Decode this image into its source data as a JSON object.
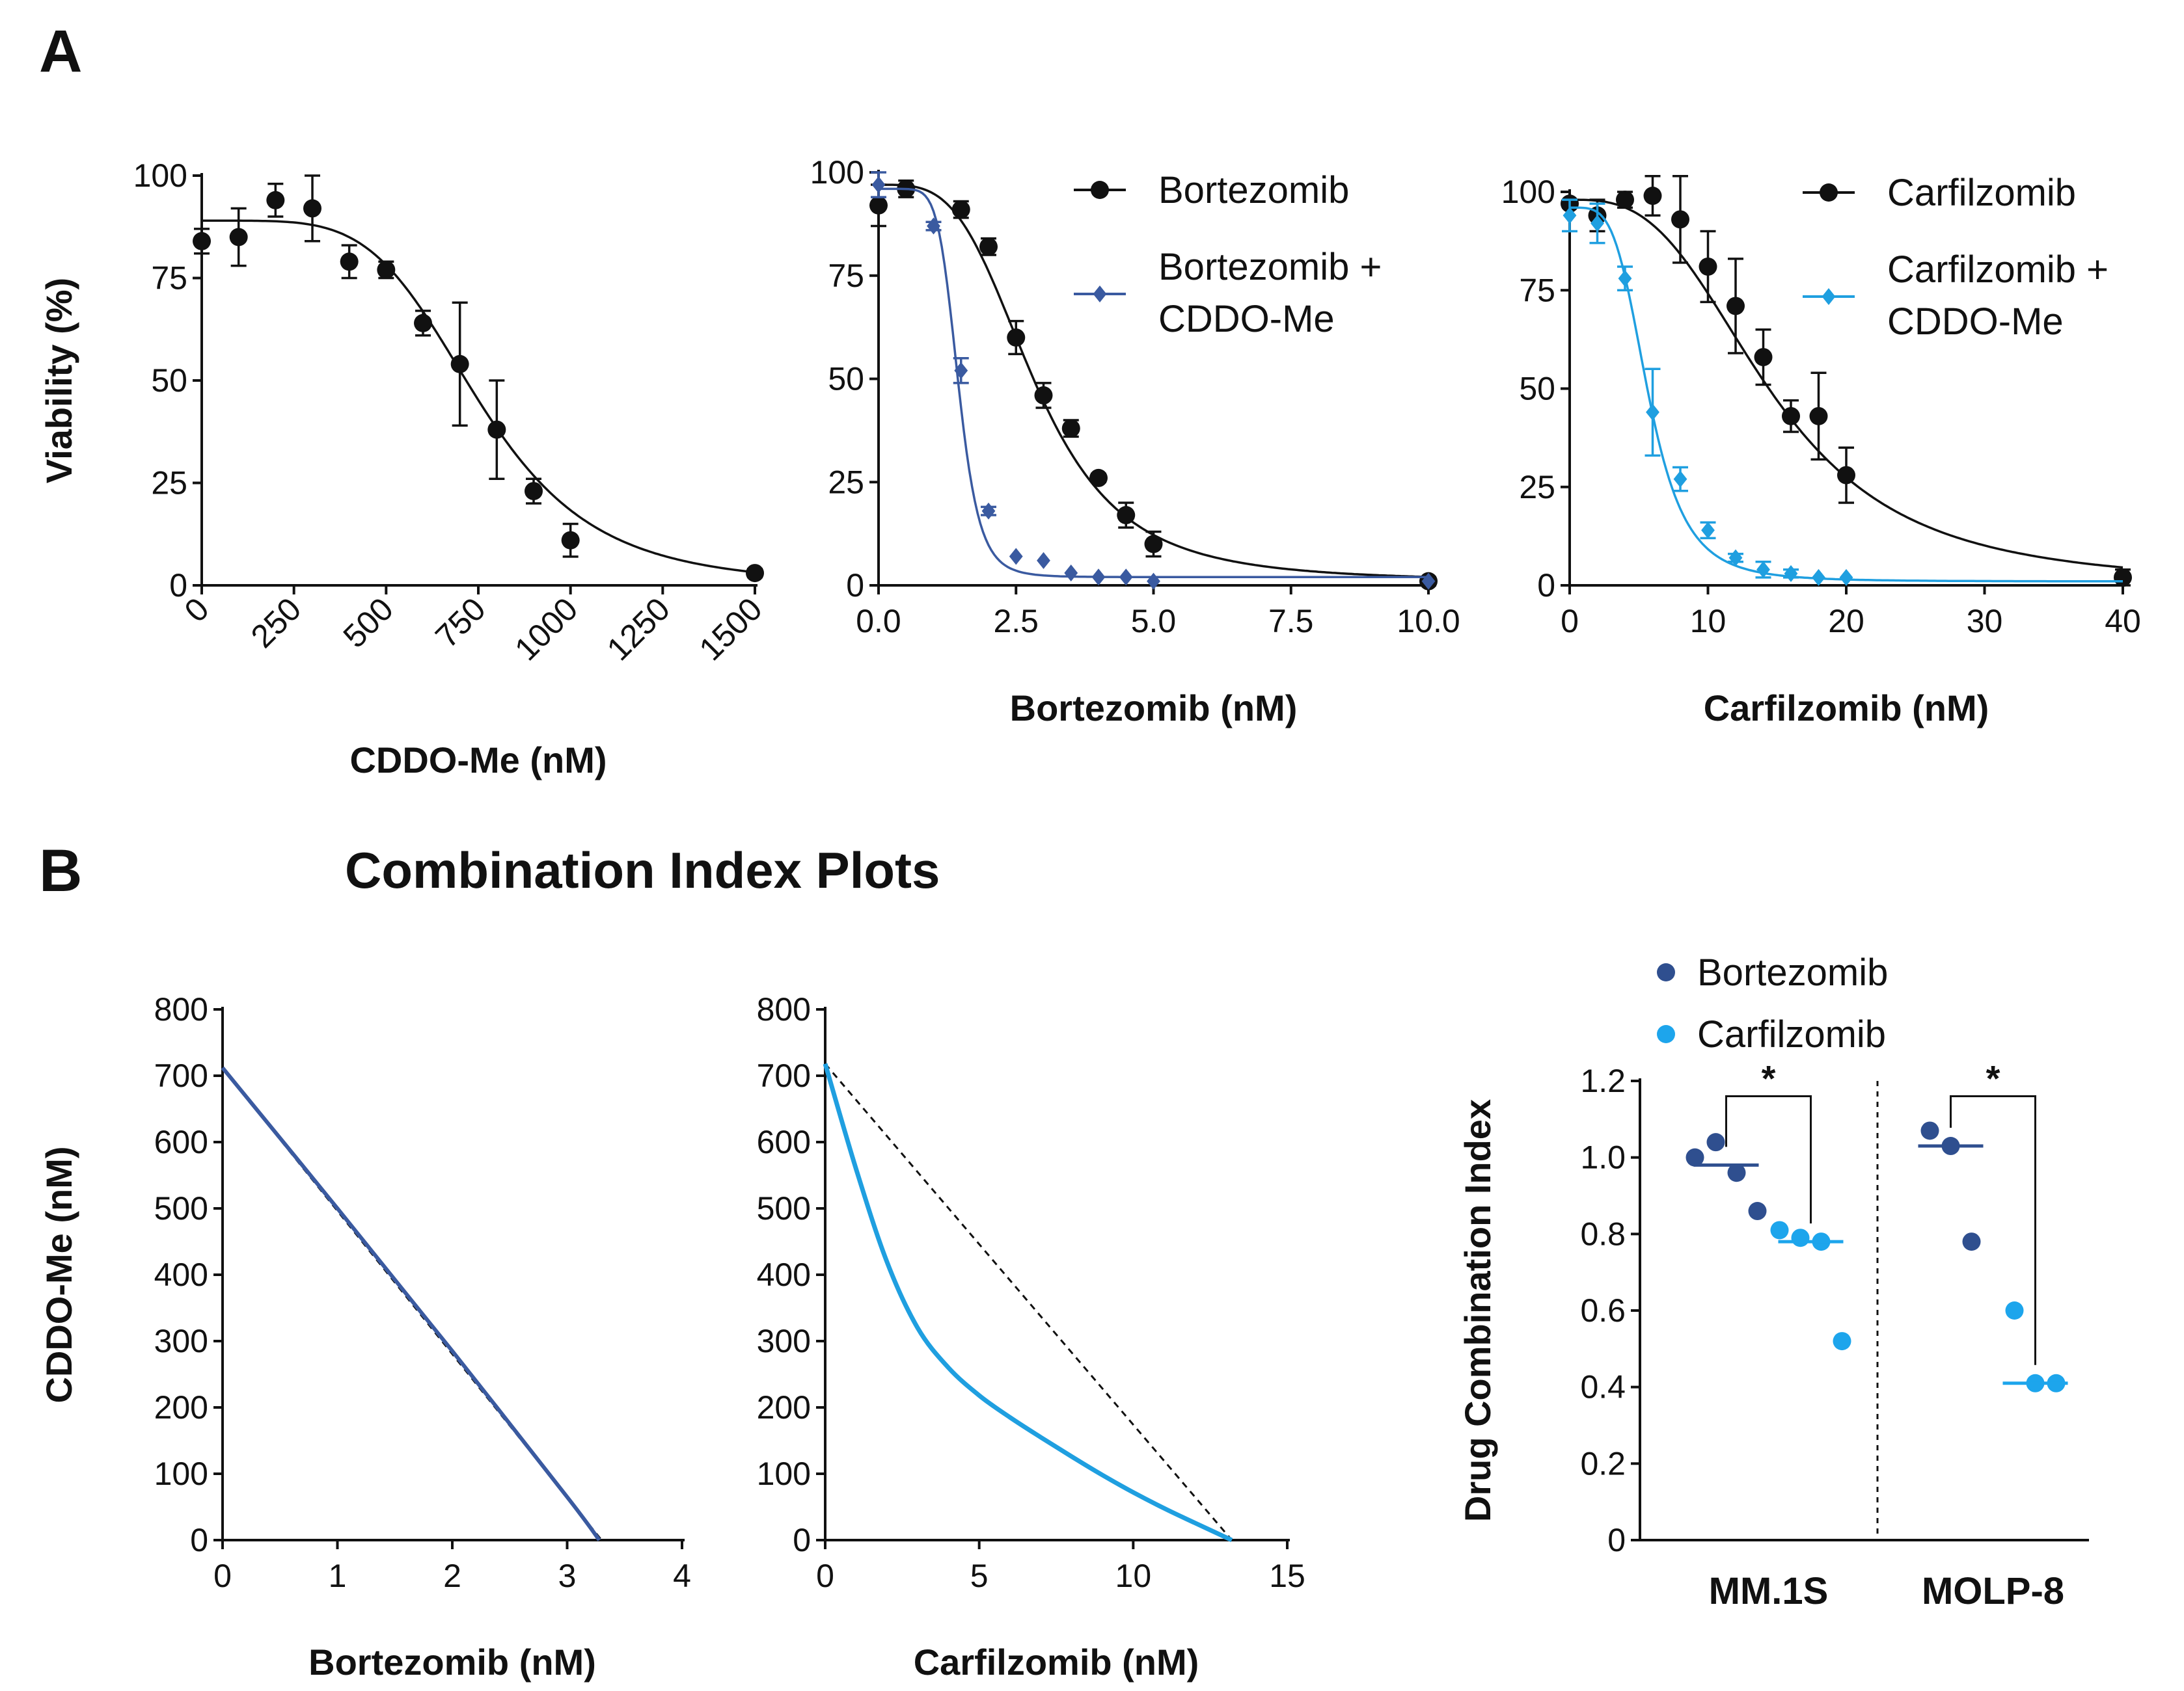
{
  "panels": {
    "a": "A",
    "b": "B"
  },
  "section_title": "Combination Index Plots",
  "colors": {
    "black": "#111111",
    "dark_blue": "#3a5aa0",
    "light_blue": "#1f9fe0",
    "mm_blue": "#2f4f8f",
    "ci_light": "#1da5ec"
  },
  "chart_data": [
    {
      "type": "line",
      "title": "",
      "xlabel": "CDDO-Me (nM)",
      "ylabel": "Viability (%)",
      "xlim": [
        0,
        1500
      ],
      "ylim": [
        0,
        100
      ],
      "xticks": [
        "0",
        "250",
        "500",
        "750",
        "1000",
        "1250",
        "1500"
      ],
      "yticks": [
        "0",
        "25",
        "50",
        "75",
        "100"
      ],
      "series": [
        {
          "name": "CDDO-Me",
          "marker": "circle",
          "x": [
            0,
            100,
            200,
            300,
            400,
            500,
            600,
            700,
            800,
            900,
            1000,
            1500
          ],
          "y": [
            84,
            85,
            94,
            92,
            79,
            77,
            64,
            54,
            38,
            23,
            11,
            3
          ],
          "err": [
            3,
            7,
            4,
            8,
            4,
            2,
            3,
            15,
            12,
            3,
            4,
            1
          ],
          "fit": {
            "top": 89,
            "bottom": 0,
            "ic50": 755,
            "hill": 4.8
          }
        }
      ]
    },
    {
      "type": "line",
      "xlabel": "Bortezomib (nM)",
      "ylabel": "",
      "xlim": [
        0,
        10
      ],
      "ylim": [
        0,
        100
      ],
      "xticks": [
        "0.0",
        "2.5",
        "5.0",
        "7.5",
        "10.0"
      ],
      "yticks": [
        "0",
        "25",
        "50",
        "75",
        "100"
      ],
      "legend": [
        "Bortezomib",
        "Bortezomib +",
        "CDDO-Me"
      ],
      "series": [
        {
          "name": "Bortezomib",
          "marker": "circle",
          "x": [
            0,
            0.5,
            1.5,
            2,
            2.5,
            3,
            3.5,
            4,
            4.5,
            5,
            10
          ],
          "y": [
            92,
            96,
            91,
            82,
            60,
            46,
            38,
            26,
            17,
            10,
            1
          ],
          "err": [
            5,
            2,
            2,
            2,
            4,
            3,
            2,
            1,
            3,
            3,
            1
          ],
          "fit": {
            "top": 97,
            "bottom": 1,
            "ic50": 2.85,
            "hill": 3.6
          }
        },
        {
          "name": "Bortezomib + CDDO-Me",
          "marker": "diamond",
          "x": [
            0,
            1,
            1.5,
            2,
            2.5,
            3,
            3.5,
            4,
            4.5,
            5,
            10
          ],
          "y": [
            97,
            87,
            52,
            18,
            7,
            6,
            3,
            2,
            2,
            1,
            1
          ],
          "err": [
            3,
            1,
            3,
            1,
            0,
            0,
            0,
            0,
            0,
            0,
            0
          ],
          "fit": {
            "top": 96,
            "bottom": 2,
            "ic50": 1.45,
            "hill": 7.5
          }
        }
      ]
    },
    {
      "type": "line",
      "xlabel": "Carfilzomib (nM)",
      "ylabel": "",
      "xlim": [
        0,
        40
      ],
      "ylim": [
        0,
        100
      ],
      "xticks": [
        "0",
        "10",
        "20",
        "30",
        "40"
      ],
      "yticks": [
        "0",
        "25",
        "50",
        "75",
        "100"
      ],
      "legend": [
        "Carfilzomib",
        "Carfilzomib +",
        "CDDO-Me"
      ],
      "series": [
        {
          "name": "Carfilzomib",
          "marker": "circle",
          "x": [
            0,
            2,
            4,
            6,
            8,
            10,
            12,
            14,
            16,
            18,
            20,
            40
          ],
          "y": [
            97,
            94,
            98,
            99,
            93,
            81,
            71,
            58,
            43,
            43,
            28,
            2
          ],
          "err": [
            1,
            4,
            2,
            5,
            11,
            9,
            12,
            7,
            4,
            11,
            7,
            2
          ],
          "fit": {
            "top": 98,
            "bottom": 0,
            "ic50": 14.6,
            "hill": 3.0
          }
        },
        {
          "name": "Carfilzomib + CDDO-Me",
          "marker": "diamond",
          "x": [
            0,
            2,
            4,
            6,
            8,
            10,
            12,
            14,
            16,
            18,
            20
          ],
          "y": [
            94,
            92,
            78,
            44,
            27,
            14,
            7,
            4,
            3,
            2,
            2
          ],
          "err": [
            4,
            5,
            3,
            11,
            3,
            2,
            1,
            2,
            1,
            0,
            0
          ],
          "fit": {
            "top": 96,
            "bottom": 1,
            "ic50": 5.7,
            "hill": 4.2
          }
        }
      ]
    },
    {
      "type": "line",
      "title": "Combination Index Plots",
      "xlabel": "Bortezomib (nM)",
      "ylabel": "CDDO-Me (nM)",
      "xlim": [
        0,
        4
      ],
      "ylim": [
        0,
        800
      ],
      "xticks": [
        "0",
        "1",
        "2",
        "3",
        "4"
      ],
      "yticks": [
        "0",
        "100",
        "200",
        "300",
        "400",
        "500",
        "600",
        "700",
        "800"
      ],
      "series": [
        {
          "name": "additivity",
          "style": "dashed",
          "x": [
            0,
            3.3
          ],
          "y": [
            712,
            0
          ]
        },
        {
          "name": "Bortezomib isobologram",
          "style": "solid",
          "x": [
            0,
            1,
            2,
            3,
            3.28
          ],
          "y": [
            712,
            500,
            285,
            65,
            0
          ]
        }
      ]
    },
    {
      "type": "line",
      "xlabel": "Carfilzomib (nM)",
      "ylabel": "",
      "xlim": [
        0,
        15
      ],
      "ylim": [
        0,
        800
      ],
      "xticks": [
        "0",
        "5",
        "10",
        "15"
      ],
      "yticks": [
        "0",
        "100",
        "200",
        "300",
        "400",
        "500",
        "600",
        "700",
        "800"
      ],
      "series": [
        {
          "name": "additivity",
          "style": "dashed",
          "x": [
            0,
            13.2
          ],
          "y": [
            718,
            0
          ]
        },
        {
          "name": "Carfilzomib isobologram",
          "style": "solid",
          "x": [
            0,
            1,
            2,
            3,
            4,
            5,
            6,
            7,
            8,
            9,
            10,
            11,
            12,
            13.2
          ],
          "y": [
            718,
            560,
            420,
            320,
            260,
            218,
            185,
            155,
            126,
            98,
            72,
            48,
            26,
            0
          ]
        }
      ]
    },
    {
      "type": "scatter",
      "xlabel": "",
      "ylabel": "Drug Combination Index",
      "ylim": [
        0,
        1.2
      ],
      "yticks": [
        "0",
        "0.2",
        "0.4",
        "0.6",
        "0.8",
        "1.0",
        "1.2"
      ],
      "categories": [
        "MM.1S",
        "MOLP-8"
      ],
      "legend": [
        "Bortezomib",
        "Carfilzomib"
      ],
      "significance": [
        "*",
        "*"
      ],
      "series": [
        {
          "name": "Bortezomib",
          "MM.1S": [
            1.0,
            1.04,
            0.96,
            0.86
          ],
          "MM.1S_median": 0.98,
          "MOLP-8": [
            1.07,
            1.03,
            0.78
          ],
          "MOLP-8_median": 1.03
        },
        {
          "name": "Carfilzomib",
          "MM.1S": [
            0.81,
            0.79,
            0.78,
            0.52
          ],
          "MM.1S_median": 0.78,
          "MOLP-8": [
            0.6,
            0.41,
            0.41
          ],
          "MOLP-8_median": 0.41
        }
      ]
    }
  ]
}
